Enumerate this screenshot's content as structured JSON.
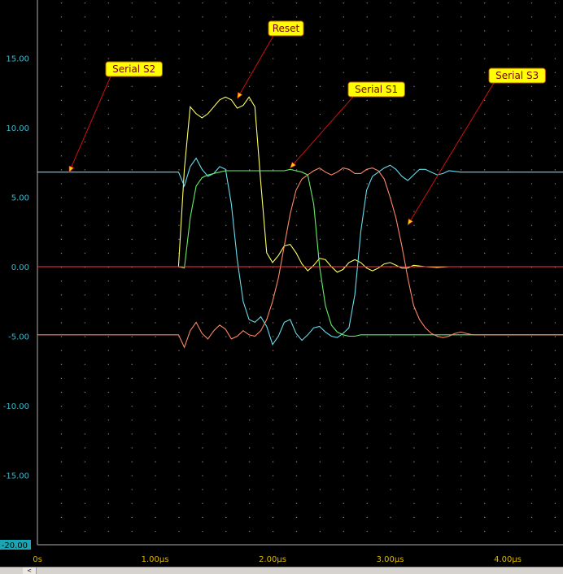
{
  "chart_data": {
    "type": "line",
    "title": "",
    "xlabel": "",
    "ylabel": "",
    "xlim": [
      0,
      4.5
    ],
    "ylim": [
      -20,
      20
    ],
    "grid": true,
    "y_ticks": [
      {
        "value": 15,
        "label": "15.00"
      },
      {
        "value": 10,
        "label": "10.00"
      },
      {
        "value": 5,
        "label": "5.00"
      },
      {
        "value": 0,
        "label": "0.00"
      },
      {
        "value": -5,
        "label": "-5.00"
      },
      {
        "value": -10,
        "label": "-10.00"
      },
      {
        "value": -15,
        "label": "-15.00"
      },
      {
        "value": -20,
        "label": "-20.00"
      }
    ],
    "x_ticks": [
      {
        "value": 0,
        "label": "0s"
      },
      {
        "value": 1,
        "label": "1.00µs"
      },
      {
        "value": 2,
        "label": "2.00µs"
      },
      {
        "value": 3,
        "label": "3.00µs"
      },
      {
        "value": 4,
        "label": "4.00µs"
      }
    ],
    "series": [
      {
        "name": "Reset",
        "color": "#ffff66",
        "x": [
          0,
          1.2,
          1.25,
          1.3,
          1.35,
          1.4,
          1.45,
          1.5,
          1.55,
          1.6,
          1.65,
          1.7,
          1.75,
          1.8,
          1.85,
          1.9,
          1.95,
          2.0,
          2.05,
          2.1,
          2.15,
          2.2,
          2.25,
          2.3,
          2.35,
          2.4,
          2.45,
          2.5,
          2.55,
          2.6,
          2.65,
          2.7,
          2.75,
          2.8,
          2.85,
          2.9,
          2.95,
          3.0,
          3.05,
          3.1,
          3.15,
          3.2,
          3.3,
          3.4,
          3.5,
          4.5
        ],
        "y": [
          0,
          0,
          7.0,
          11.5,
          11.0,
          10.7,
          11.0,
          11.5,
          12.0,
          12.2,
          12.0,
          11.4,
          11.6,
          12.2,
          11.5,
          6.0,
          1.0,
          0.3,
          0.8,
          1.5,
          1.6,
          1.0,
          0.2,
          -0.3,
          0.1,
          0.6,
          0.5,
          0.0,
          -0.4,
          -0.2,
          0.3,
          0.5,
          0.3,
          -0.1,
          -0.3,
          -0.1,
          0.2,
          0.3,
          0.1,
          -0.1,
          -0.1,
          0.1,
          0.0,
          -0.05,
          0.0,
          0.0
        ]
      },
      {
        "name": "Serial S2",
        "color": "#66ddee",
        "x": [
          0,
          1.2,
          1.25,
          1.3,
          1.35,
          1.4,
          1.45,
          1.5,
          1.55,
          1.6,
          1.65,
          1.7,
          1.75,
          1.8,
          1.85,
          1.9,
          1.95,
          2.0,
          2.05,
          2.1,
          2.15,
          2.2,
          2.25,
          2.3,
          2.35,
          2.4,
          2.45,
          2.5,
          2.55,
          2.6,
          2.65,
          2.7,
          2.75,
          2.8,
          2.85,
          2.9,
          2.95,
          3.0,
          3.05,
          3.1,
          3.15,
          3.2,
          3.25,
          3.3,
          3.35,
          3.4,
          3.45,
          3.5,
          3.6,
          3.7,
          4.5
        ],
        "y": [
          6.8,
          6.8,
          5.8,
          7.2,
          7.8,
          7.0,
          6.5,
          6.7,
          7.2,
          7.0,
          4.5,
          0.5,
          -2.5,
          -3.8,
          -4.0,
          -3.6,
          -4.3,
          -5.6,
          -5.0,
          -4.0,
          -3.8,
          -4.8,
          -5.3,
          -4.9,
          -4.4,
          -4.3,
          -4.7,
          -5.0,
          -5.1,
          -4.8,
          -4.4,
          -2.0,
          2.5,
          5.5,
          6.5,
          6.8,
          7.1,
          7.3,
          7.0,
          6.5,
          6.2,
          6.6,
          7.0,
          7.0,
          6.8,
          6.6,
          6.7,
          6.9,
          6.8,
          6.8,
          6.8
        ]
      },
      {
        "name": "Serial S1",
        "color": "#66ee66",
        "x": [
          0,
          1.2,
          1.25,
          1.3,
          1.35,
          1.4,
          1.45,
          1.5,
          1.55,
          1.6,
          1.65,
          1.7,
          1.75,
          1.8,
          1.85,
          1.9,
          1.95,
          2.0,
          2.05,
          2.1,
          2.15,
          2.2,
          2.25,
          2.3,
          2.35,
          2.4,
          2.45,
          2.5,
          2.55,
          2.6,
          2.65,
          2.7,
          2.75,
          2.8,
          2.9,
          3.0,
          3.5,
          4.0,
          4.5
        ],
        "y": [
          0,
          0,
          -0.1,
          3.5,
          5.8,
          6.4,
          6.6,
          6.7,
          6.8,
          6.9,
          6.9,
          6.9,
          6.9,
          6.9,
          6.9,
          6.9,
          6.9,
          6.9,
          6.9,
          6.9,
          7.0,
          6.9,
          6.8,
          6.6,
          4.5,
          0.0,
          -2.8,
          -4.2,
          -4.7,
          -4.9,
          -5.0,
          -5.0,
          -4.9,
          -4.9,
          -4.9,
          -4.9,
          -4.9,
          -4.9,
          -4.9
        ]
      },
      {
        "name": "Serial S3",
        "color": "#ff8866",
        "x": [
          0,
          1.2,
          1.25,
          1.3,
          1.35,
          1.4,
          1.45,
          1.5,
          1.55,
          1.6,
          1.65,
          1.7,
          1.75,
          1.8,
          1.85,
          1.9,
          1.95,
          2.0,
          2.05,
          2.1,
          2.15,
          2.2,
          2.25,
          2.3,
          2.35,
          2.4,
          2.45,
          2.5,
          2.55,
          2.6,
          2.65,
          2.7,
          2.75,
          2.8,
          2.85,
          2.9,
          2.95,
          3.0,
          3.05,
          3.1,
          3.15,
          3.2,
          3.25,
          3.3,
          3.35,
          3.4,
          3.45,
          3.5,
          3.55,
          3.6,
          3.65,
          3.7,
          3.8,
          4.0,
          4.5
        ],
        "y": [
          -4.9,
          -4.9,
          -5.8,
          -4.6,
          -4.0,
          -4.8,
          -5.2,
          -4.6,
          -4.2,
          -4.5,
          -5.2,
          -5.0,
          -4.6,
          -4.9,
          -5.0,
          -4.6,
          -3.8,
          -2.5,
          -0.8,
          1.5,
          3.8,
          5.5,
          6.3,
          6.6,
          6.9,
          7.1,
          6.8,
          6.6,
          6.8,
          7.1,
          7.0,
          6.7,
          6.7,
          7.0,
          7.1,
          6.9,
          6.3,
          5.0,
          3.5,
          1.5,
          -0.8,
          -2.8,
          -3.8,
          -4.4,
          -4.8,
          -5.0,
          -5.1,
          -5.0,
          -4.8,
          -4.7,
          -4.8,
          -4.9,
          -4.9,
          -4.9,
          -4.9
        ]
      },
      {
        "name": "",
        "color": "#ff3333",
        "x": [
          0,
          4.5
        ],
        "y": [
          0,
          0
        ]
      }
    ],
    "annotations": [
      {
        "label": "Serial S2",
        "arrow_x": 0.27,
        "arrow_y": 6.8
      },
      {
        "label": "Reset",
        "arrow_x": 1.7,
        "arrow_y": 12.1
      },
      {
        "label": "Serial S1",
        "arrow_x": 2.15,
        "arrow_y": 7.1
      },
      {
        "label": "Serial S3",
        "arrow_x": 3.15,
        "arrow_y": 3.0
      }
    ]
  },
  "colors": {
    "background": "#000000",
    "grid_dot": "#8a8a8a",
    "axis": "#b0b0b0",
    "y_tick_text": "#3fb7c7",
    "x_tick_text": "#d9b800",
    "callout_fill": "#ffff00",
    "callout_border": "#c06000",
    "arrow": "#d01010"
  },
  "scrollbar": {
    "left_arrow": "<"
  }
}
